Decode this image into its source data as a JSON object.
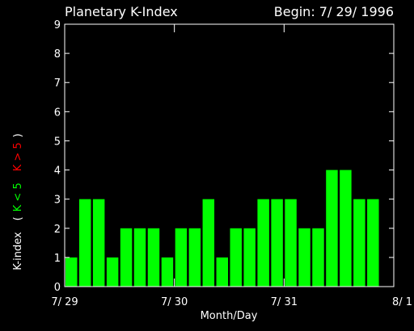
{
  "chart_data": {
    "type": "bar",
    "title": "Planetary K-Index",
    "subtitle": "Begin: 7/ 29/ 1996",
    "xlabel": "Month/Day",
    "ylabel": {
      "main": "K-index",
      "paren_open": "(",
      "low": "K < 5",
      "high": "K > 5",
      "paren_close": ")"
    },
    "ylim": [
      0,
      9
    ],
    "yticks": [
      0,
      1,
      2,
      3,
      4,
      5,
      6,
      7,
      8,
      9
    ],
    "x_tick_labels": [
      "7/ 29",
      "7/ 30",
      "7/ 31",
      "8/ 1"
    ],
    "bars_per_day": 8,
    "interval_hours": 3,
    "values": [
      1,
      3,
      3,
      1,
      2,
      2,
      2,
      1,
      2,
      2,
      3,
      1,
      2,
      2,
      3,
      3,
      3,
      2,
      2,
      4,
      4,
      3,
      3
    ],
    "grid": false,
    "legend": "none"
  },
  "colors": {
    "background": "#000000",
    "axis": "#ffffff",
    "bar_low": "#00ff00",
    "bar_high": "#ff0000",
    "label_low": "#00ff00",
    "label_high": "#ff0000",
    "text": "#ffffff"
  }
}
